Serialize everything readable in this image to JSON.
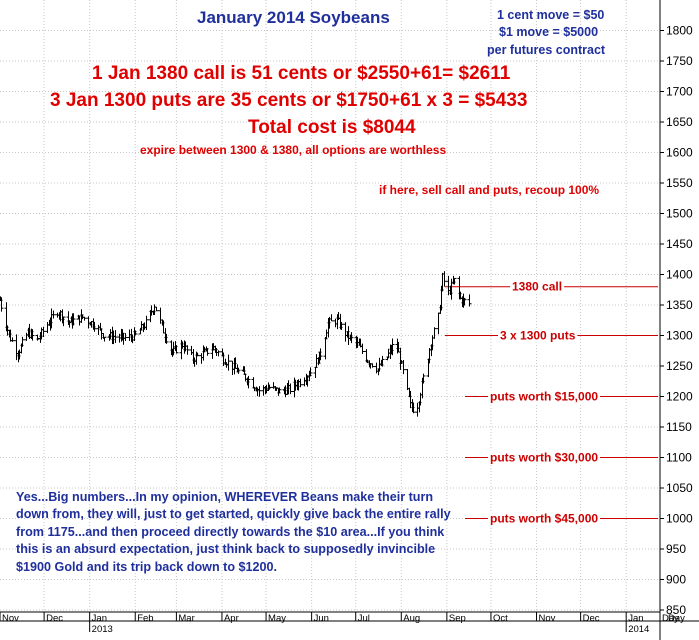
{
  "annotations": {
    "title": "January 2014 Soybeans",
    "contract_notes": [
      "1 cent move = $50",
      "$1 move = $5000",
      "per futures contract"
    ],
    "trade_lines": [
      "1 Jan 1380 call is 51 cents or $2550+61= $2611",
      "3 Jan 1300 puts are 35 cents or $1750+61 x 3 = $5433",
      "Total cost is $8044",
      "expire between 1300 & 1380, all options are worthless",
      "if here, sell call and puts, recoup 100%"
    ],
    "commentary": "Yes...Big numbers...In my opinion, WHEREVER Beans make their turn down from, they will, just to get started, quickly give back the entire rally from 1175...and then proceed directly towards the $10 area...If you think this is an absurd expectation, just think back to supposedly invincible $1900 Gold and its trip back down to $1200."
  },
  "chart_data": {
    "type": "bar",
    "style": "ohlc",
    "title": "January 2014 Soybeans",
    "ylim": [
      850,
      1850
    ],
    "y_ticks": [
      850,
      900,
      950,
      1000,
      1050,
      1100,
      1150,
      1200,
      1250,
      1300,
      1350,
      1400,
      1450,
      1500,
      1550,
      1600,
      1650,
      1700,
      1750,
      1800
    ],
    "grid": true,
    "y_axis_side": "right",
    "x_months": [
      "Nov",
      "Dec",
      "Jan",
      "Feb",
      "Mar",
      "Apr",
      "May",
      "Jun",
      "Jul",
      "Aug",
      "Sep",
      "Oct",
      "Nov",
      "Dec",
      "Jan",
      "Day"
    ],
    "x_years": [
      "2013",
      "2014"
    ],
    "price_path": [
      {
        "date": "2012-11-01",
        "close": 1358
      },
      {
        "date": "2012-11-07",
        "close": 1300
      },
      {
        "date": "2012-11-13",
        "close": 1272
      },
      {
        "date": "2012-11-20",
        "close": 1305
      },
      {
        "date": "2012-11-26",
        "close": 1292
      },
      {
        "date": "2012-12-03",
        "close": 1318
      },
      {
        "date": "2012-12-10",
        "close": 1340
      },
      {
        "date": "2012-12-18",
        "close": 1322
      },
      {
        "date": "2012-12-27",
        "close": 1330
      },
      {
        "date": "2013-01-04",
        "close": 1318
      },
      {
        "date": "2013-01-11",
        "close": 1300
      },
      {
        "date": "2013-01-18",
        "close": 1298
      },
      {
        "date": "2013-01-25",
        "close": 1296
      },
      {
        "date": "2013-02-01",
        "close": 1300
      },
      {
        "date": "2013-02-08",
        "close": 1320
      },
      {
        "date": "2013-02-14",
        "close": 1350
      },
      {
        "date": "2013-02-20",
        "close": 1308
      },
      {
        "date": "2013-02-26",
        "close": 1272
      },
      {
        "date": "2013-03-05",
        "close": 1285
      },
      {
        "date": "2013-03-12",
        "close": 1262
      },
      {
        "date": "2013-03-19",
        "close": 1270
      },
      {
        "date": "2013-03-26",
        "close": 1280
      },
      {
        "date": "2013-04-02",
        "close": 1262
      },
      {
        "date": "2013-04-10",
        "close": 1245
      },
      {
        "date": "2013-04-18",
        "close": 1230
      },
      {
        "date": "2013-04-26",
        "close": 1210
      },
      {
        "date": "2013-05-03",
        "close": 1215
      },
      {
        "date": "2013-05-10",
        "close": 1208
      },
      {
        "date": "2013-05-17",
        "close": 1212
      },
      {
        "date": "2013-05-24",
        "close": 1225
      },
      {
        "date": "2013-05-31",
        "close": 1240
      },
      {
        "date": "2013-06-07",
        "close": 1270
      },
      {
        "date": "2013-06-12",
        "close": 1320
      },
      {
        "date": "2013-06-18",
        "close": 1325
      },
      {
        "date": "2013-06-25",
        "close": 1300
      },
      {
        "date": "2013-07-02",
        "close": 1285
      },
      {
        "date": "2013-07-09",
        "close": 1260
      },
      {
        "date": "2013-07-16",
        "close": 1245
      },
      {
        "date": "2013-07-22",
        "close": 1265
      },
      {
        "date": "2013-07-28",
        "close": 1290
      },
      {
        "date": "2013-08-02",
        "close": 1240
      },
      {
        "date": "2013-08-07",
        "close": 1185
      },
      {
        "date": "2013-08-11",
        "close": 1175
      },
      {
        "date": "2013-08-16",
        "close": 1230
      },
      {
        "date": "2013-08-21",
        "close": 1290
      },
      {
        "date": "2013-08-26",
        "close": 1330
      },
      {
        "date": "2013-08-29",
        "close": 1395
      },
      {
        "date": "2013-09-02",
        "close": 1370
      },
      {
        "date": "2013-09-06",
        "close": 1390
      },
      {
        "date": "2013-09-10",
        "close": 1360
      },
      {
        "date": "2013-09-16",
        "close": 1352
      }
    ],
    "levels": [
      {
        "label": "1380 call",
        "value": 1380
      },
      {
        "label": "3 x 1300 puts",
        "value": 1300
      },
      {
        "label": "puts worth $15,000",
        "value": 1200
      },
      {
        "label": "puts worth $30,000",
        "value": 1100
      },
      {
        "label": "puts worth $45,000",
        "value": 1000
      }
    ]
  }
}
